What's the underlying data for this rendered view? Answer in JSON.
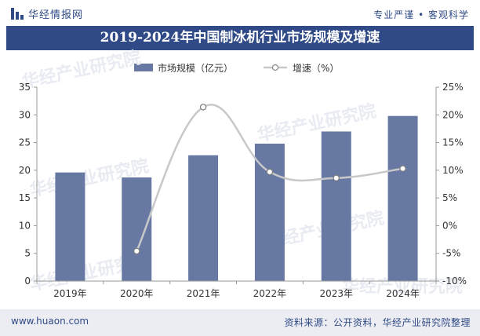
{
  "header": {
    "brand": "华经情报网",
    "tagline": "专业严谨 • 客观科学",
    "title": "2019-2024年中国制冰机行业市场规模及增速"
  },
  "legend": {
    "bar_label": "市场规模（亿元）",
    "line_label": "增速（%）"
  },
  "footer": {
    "url": "www.huaon.com",
    "source": "资料来源：公开资料，华经产业研究院整理"
  },
  "watermark": "华经产业研究院",
  "chart_data": {
    "type": "bar",
    "categories": [
      "2019年",
      "2020年",
      "2021年",
      "2022年",
      "2023年",
      "2024年"
    ],
    "series": [
      {
        "name": "市场规模（亿元）",
        "type": "bar",
        "axis": "left",
        "values": [
          19.6,
          18.7,
          22.7,
          24.8,
          27.0,
          29.8
        ]
      },
      {
        "name": "增速（%）",
        "type": "line",
        "axis": "right",
        "values": [
          null,
          -4.6,
          21.4,
          9.7,
          8.6,
          10.3
        ]
      }
    ],
    "y_left": {
      "lim": [
        0,
        35
      ],
      "ticks": [
        0,
        5,
        10,
        15,
        20,
        25,
        30,
        35
      ]
    },
    "y_right": {
      "lim": [
        -10,
        25
      ],
      "ticks": [
        "-10%",
        "-5%",
        "0%",
        "5%",
        "10%",
        "15%",
        "20%",
        "25%"
      ]
    },
    "colors": {
      "bar": "#6779a3",
      "line": "#c8c8c8",
      "accent": "#2f4a86"
    },
    "grid": false,
    "legend_position": "top-center"
  }
}
